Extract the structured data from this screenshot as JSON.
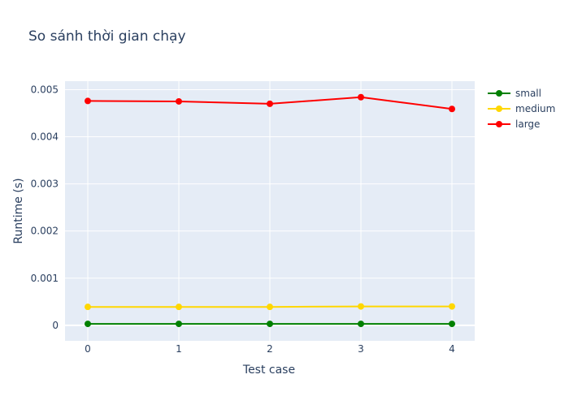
{
  "chart_data": {
    "type": "line",
    "title": "So sánh thời gian chạy",
    "xlabel": "Test case",
    "ylabel": "Runtime (s)",
    "x": [
      0,
      1,
      2,
      3,
      4
    ],
    "xlim": [
      -0.25,
      4.25
    ],
    "ylim": [
      -0.00033,
      0.00518
    ],
    "yticks": [
      0,
      0.001,
      0.002,
      0.003,
      0.004,
      0.005
    ],
    "ytick_labels": [
      "0",
      "0.001",
      "0.002",
      "0.003",
      "0.004",
      "0.005"
    ],
    "xtick_labels": [
      "0",
      "1",
      "2",
      "3",
      "4"
    ],
    "grid": true,
    "legend": "right",
    "series": [
      {
        "name": "small",
        "color": "#008000",
        "values": [
          3e-05,
          3e-05,
          3e-05,
          3e-05,
          3e-05
        ]
      },
      {
        "name": "medium",
        "color": "#FFD700",
        "values": [
          0.00039,
          0.00039,
          0.00039,
          0.0004,
          0.0004
        ]
      },
      {
        "name": "large",
        "color": "#FF0000",
        "values": [
          0.00476,
          0.00475,
          0.0047,
          0.00484,
          0.00459
        ]
      }
    ],
    "plot_background": "#E5ECF6",
    "grid_color": "#ffffff"
  }
}
